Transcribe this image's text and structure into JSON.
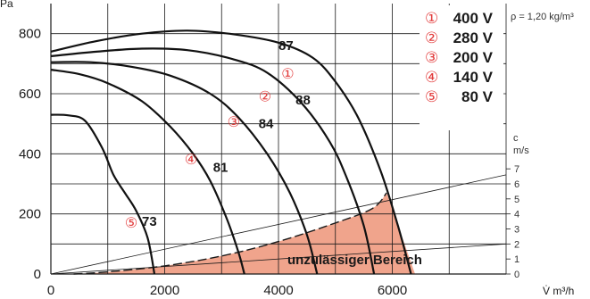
{
  "chart_data": {
    "type": "line",
    "yaxis": {
      "unit": "Pa",
      "ticks": [
        "0",
        "200",
        "400",
        "600",
        "800"
      ],
      "range": [
        0,
        900
      ]
    },
    "xaxis": {
      "unit": "V̇ m³/h",
      "ticks": [
        "0",
        "2000",
        "4000",
        "6000"
      ],
      "range": [
        0,
        8000
      ]
    },
    "velocity_axis": {
      "title": "c",
      "unit": "m/s",
      "ticks": [
        "0",
        "1",
        "2",
        "3",
        "4",
        "5",
        "6",
        "7"
      ]
    },
    "density_note": "ρ = 1,20 kg/m³",
    "forbidden_zone": {
      "label": "unzulässiger Bereich",
      "color": "#f0a48c",
      "boundary": [
        [
          400,
          0
        ],
        [
          1000,
          7
        ],
        [
          2000,
          27
        ],
        [
          3000,
          60
        ],
        [
          4000,
          108
        ],
        [
          5000,
          170
        ],
        [
          5650,
          218
        ],
        [
          5900,
          270
        ],
        [
          6400,
          0
        ]
      ]
    },
    "series": [
      {
        "marker": "①",
        "voltage": "400 V",
        "efficiency_label": "87",
        "points": [
          [
            0,
            740
          ],
          [
            800,
            775
          ],
          [
            1600,
            800
          ],
          [
            2400,
            810
          ],
          [
            3200,
            798
          ],
          [
            4000,
            770
          ],
          [
            4600,
            720
          ],
          [
            5000,
            640
          ],
          [
            5400,
            520
          ],
          [
            5800,
            340
          ],
          [
            6100,
            160
          ],
          [
            6330,
            0
          ]
        ]
      },
      {
        "marker": "②",
        "voltage": "280 V",
        "efficiency_label": "88",
        "points": [
          [
            0,
            725
          ],
          [
            800,
            740
          ],
          [
            1600,
            750
          ],
          [
            2400,
            745
          ],
          [
            3200,
            715
          ],
          [
            3800,
            670
          ],
          [
            4400,
            570
          ],
          [
            4900,
            440
          ],
          [
            5200,
            320
          ],
          [
            5500,
            160
          ],
          [
            5680,
            0
          ]
        ]
      },
      {
        "marker": "③",
        "voltage": "200 V",
        "efficiency_label": "84",
        "points": [
          [
            0,
            705
          ],
          [
            700,
            705
          ],
          [
            1400,
            690
          ],
          [
            2100,
            660
          ],
          [
            2800,
            600
          ],
          [
            3300,
            520
          ],
          [
            3800,
            400
          ],
          [
            4200,
            270
          ],
          [
            4500,
            130
          ],
          [
            4680,
            0
          ]
        ]
      },
      {
        "marker": "④",
        "voltage": "140 V",
        "efficiency_label": "81",
        "points": [
          [
            0,
            680
          ],
          [
            500,
            665
          ],
          [
            1000,
            635
          ],
          [
            1600,
            575
          ],
          [
            2100,
            490
          ],
          [
            2500,
            400
          ],
          [
            2800,
            310
          ],
          [
            3100,
            180
          ],
          [
            3300,
            70
          ],
          [
            3400,
            0
          ]
        ]
      },
      {
        "marker": "⑤",
        "voltage": "80 V",
        "efficiency_label": "73",
        "points": [
          [
            0,
            530
          ],
          [
            300,
            528
          ],
          [
            600,
            510
          ],
          [
            900,
            420
          ],
          [
            1100,
            330
          ],
          [
            1300,
            270
          ],
          [
            1500,
            210
          ],
          [
            1700,
            120
          ],
          [
            1820,
            0
          ]
        ]
      }
    ],
    "velocity_lines": [
      "upper",
      "lower"
    ]
  }
}
